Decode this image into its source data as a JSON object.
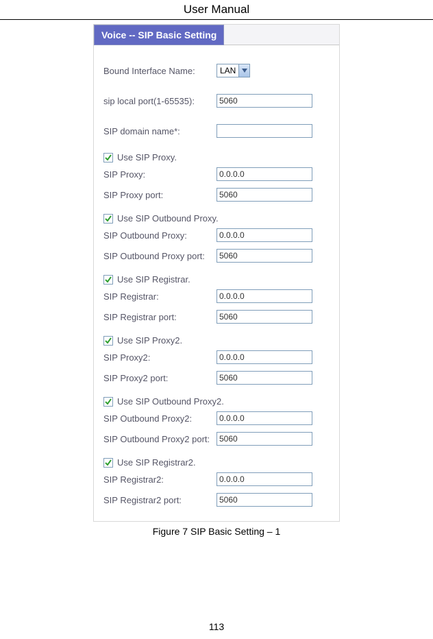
{
  "page": {
    "header_title": "User Manual",
    "figure_caption": "Figure 7 SIP Basic Setting – 1",
    "page_number": "113"
  },
  "panel": {
    "tab_title": "Voice -- SIP Basic Setting",
    "colors": {
      "tab_bg": "#6169c3",
      "tab_text": "#ffffff",
      "label_text": "#555566",
      "input_border": "#7f9db9",
      "check_color": "#2f9f2f"
    },
    "fields": {
      "bound_interface": {
        "label": "Bound Interface Name:",
        "value": "LAN"
      },
      "sip_local_port": {
        "label": "sip local port(1-65535):",
        "value": "5060"
      },
      "sip_domain": {
        "label": "SIP domain name*:",
        "value": ""
      }
    },
    "groups": [
      {
        "checkbox_label": "Use SIP Proxy.",
        "checked": true,
        "rows": [
          {
            "label": "SIP Proxy:",
            "value": "0.0.0.0"
          },
          {
            "label": "SIP Proxy port:",
            "value": "5060"
          }
        ]
      },
      {
        "checkbox_label": "Use SIP Outbound Proxy.",
        "checked": true,
        "rows": [
          {
            "label": "SIP Outbound Proxy:",
            "value": "0.0.0.0"
          },
          {
            "label": "SIP Outbound Proxy port:",
            "value": "5060"
          }
        ]
      },
      {
        "checkbox_label": "Use SIP Registrar.",
        "checked": true,
        "rows": [
          {
            "label": "SIP Registrar:",
            "value": "0.0.0.0"
          },
          {
            "label": "SIP Registrar port:",
            "value": "5060"
          }
        ]
      },
      {
        "checkbox_label": "Use SIP Proxy2.",
        "checked": true,
        "rows": [
          {
            "label": "SIP Proxy2:",
            "value": "0.0.0.0"
          },
          {
            "label": "SIP Proxy2 port:",
            "value": "5060"
          }
        ]
      },
      {
        "checkbox_label": "Use SIP Outbound Proxy2.",
        "checked": true,
        "rows": [
          {
            "label": "SIP Outbound Proxy2:",
            "value": "0.0.0.0"
          },
          {
            "label": "SIP Outbound Proxy2 port:",
            "value": "5060"
          }
        ]
      },
      {
        "checkbox_label": "Use SIP Registrar2.",
        "checked": true,
        "rows": [
          {
            "label": "SIP Registrar2:",
            "value": "0.0.0.0"
          },
          {
            "label": "SIP Registrar2 port:",
            "value": "5060"
          }
        ]
      }
    ]
  }
}
